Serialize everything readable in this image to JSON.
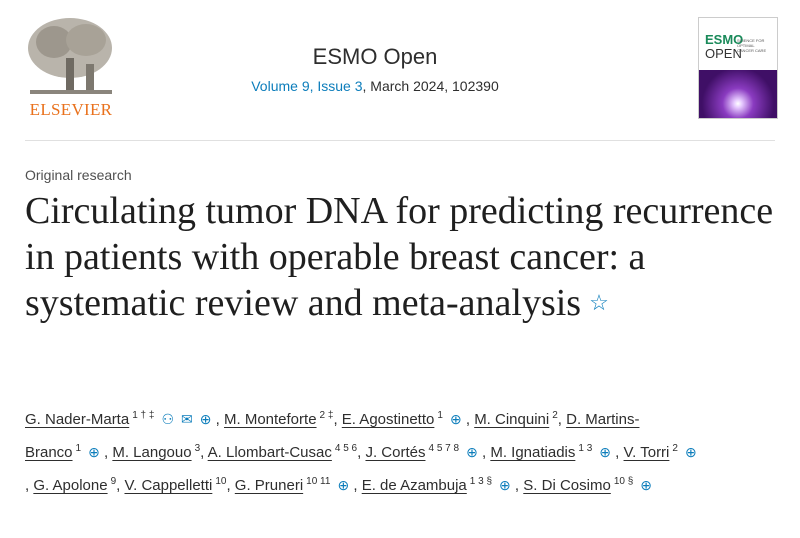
{
  "publisher": {
    "name": "ELSEVIER"
  },
  "journal": {
    "title": "ESMO Open",
    "volume": "Volume 9, Issue 3",
    "date_id": ", March 2024, 102390",
    "cover_lettering": [
      "ESMO",
      "OPEN",
      "SCIENCE FOR OPTIMAL CANCER CARE"
    ]
  },
  "article": {
    "type": "Original research",
    "title": "Circulating tumor DNA for predicting recurrence in patients with operable breast cancer: a systematic review and meta-analysis",
    "title_icon": "star-icon"
  },
  "authors": [
    {
      "name": "G. Nader-Marta",
      "sup": "1 † ‡",
      "icons": [
        "person-icon",
        "mail-icon",
        "globe-icon"
      ]
    },
    {
      "name": "M. Monteforte",
      "sup": "2 ‡",
      "icons": []
    },
    {
      "name": "E. Agostinetto",
      "sup": "1",
      "icons": [
        "globe-icon"
      ]
    },
    {
      "name": "M. Cinquini",
      "sup": "2",
      "icons": []
    },
    {
      "name": "D. Martins-Branco",
      "sup": "1",
      "icons": [
        "globe-icon"
      ]
    },
    {
      "name": "M. Langouo",
      "sup": "3",
      "icons": []
    },
    {
      "name": "A. Llombart-Cusac",
      "sup": "4 5 6",
      "icons": []
    },
    {
      "name": "J. Cortés",
      "sup": "4 5 7 8",
      "icons": [
        "globe-icon"
      ]
    },
    {
      "name": "M. Ignatiadis",
      "sup": "1 3",
      "icons": [
        "globe-icon"
      ]
    },
    {
      "name": "V. Torri",
      "sup": "2",
      "icons": [
        "globe-icon"
      ]
    },
    {
      "name": "G. Apolone",
      "sup": "9",
      "icons": []
    },
    {
      "name": "V. Cappelletti",
      "sup": "10",
      "icons": []
    },
    {
      "name": "G. Pruneri",
      "sup": "10 11",
      "icons": [
        "globe-icon"
      ]
    },
    {
      "name": "E. de Azambuja",
      "sup": "1 3 §",
      "icons": [
        "globe-icon"
      ]
    },
    {
      "name": "S. Di Cosimo",
      "sup": "10 §",
      "icons": [
        "globe-icon"
      ]
    }
  ],
  "colors": {
    "link": "#0c7dbb",
    "elsevier": "#e9711c"
  }
}
